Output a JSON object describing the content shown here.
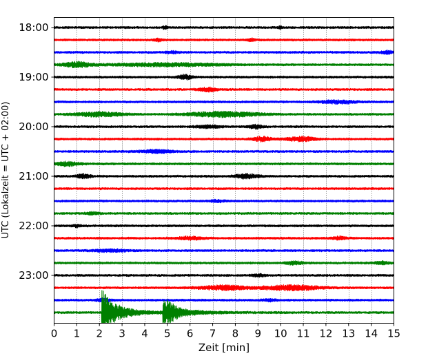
{
  "chart_data": {
    "type": "line",
    "title": "",
    "xlabel": "Zeit  [min]",
    "ylabel": "UTC (Lokalzeit = UTC + 02:00)",
    "xlim": [
      0,
      15
    ],
    "xticks": [
      0,
      1,
      2,
      3,
      4,
      5,
      6,
      7,
      8,
      9,
      10,
      11,
      12,
      13,
      14,
      15
    ],
    "grid": "vertical dotted",
    "legend": "none",
    "row_colors": [
      "#000000",
      "#ff0000",
      "#0000ff",
      "#008000"
    ],
    "ytick_labels": [
      {
        "row": 0,
        "label": "18:00"
      },
      {
        "row": 4,
        "label": "19:00"
      },
      {
        "row": 8,
        "label": "20:00"
      },
      {
        "row": 12,
        "label": "21:00"
      },
      {
        "row": 16,
        "label": "22:00"
      },
      {
        "row": 20,
        "label": "23:00"
      }
    ],
    "rows": [
      {
        "start": "18:00",
        "color": "#000000",
        "events": [
          {
            "t": 4.9,
            "amp": 0.2,
            "w": 0.1
          },
          {
            "t": 10.0,
            "amp": 0.15,
            "w": 0.1
          }
        ]
      },
      {
        "start": "18:15",
        "color": "#ff0000",
        "events": [
          {
            "t": 4.6,
            "amp": 0.15,
            "w": 0.2
          },
          {
            "t": 8.7,
            "amp": 0.15,
            "w": 0.2
          }
        ]
      },
      {
        "start": "18:30",
        "color": "#0000ff",
        "events": [
          {
            "t": 5.2,
            "amp": 0.15,
            "w": 0.3
          },
          {
            "t": 14.7,
            "amp": 0.2,
            "w": 0.3
          }
        ]
      },
      {
        "start": "18:45",
        "color": "#008000",
        "events": [
          {
            "t": 1.0,
            "amp": 0.35,
            "w": 0.6
          },
          {
            "t": 5.0,
            "amp": 0.2,
            "w": 2.5
          }
        ]
      },
      {
        "start": "19:00",
        "color": "#000000",
        "events": [
          {
            "t": 5.8,
            "amp": 0.3,
            "w": 0.3
          }
        ]
      },
      {
        "start": "19:15",
        "color": "#ff0000",
        "events": [
          {
            "t": 6.8,
            "amp": 0.25,
            "w": 0.4
          }
        ]
      },
      {
        "start": "19:30",
        "color": "#0000ff",
        "events": [
          {
            "t": 12.5,
            "amp": 0.2,
            "w": 0.8
          }
        ]
      },
      {
        "start": "19:45",
        "color": "#008000",
        "events": [
          {
            "t": 2.0,
            "amp": 0.3,
            "w": 1.0
          },
          {
            "t": 7.5,
            "amp": 0.35,
            "w": 1.5
          }
        ]
      },
      {
        "start": "20:00",
        "color": "#000000",
        "events": [
          {
            "t": 6.8,
            "amp": 0.2,
            "w": 0.5
          },
          {
            "t": 8.9,
            "amp": 0.25,
            "w": 0.3
          }
        ]
      },
      {
        "start": "20:15",
        "color": "#ff0000",
        "events": [
          {
            "t": 9.2,
            "amp": 0.3,
            "w": 0.4
          },
          {
            "t": 10.9,
            "amp": 0.3,
            "w": 0.6
          }
        ]
      },
      {
        "start": "20:30",
        "color": "#0000ff",
        "events": [
          {
            "t": 4.5,
            "amp": 0.2,
            "w": 0.7
          }
        ]
      },
      {
        "start": "20:45",
        "color": "#008000",
        "events": [
          {
            "t": 0.6,
            "amp": 0.3,
            "w": 0.5
          }
        ]
      },
      {
        "start": "21:00",
        "color": "#000000",
        "events": [
          {
            "t": 1.3,
            "amp": 0.3,
            "w": 0.3
          },
          {
            "t": 8.5,
            "amp": 0.3,
            "w": 0.5
          }
        ]
      },
      {
        "start": "21:15",
        "color": "#ff0000",
        "events": []
      },
      {
        "start": "21:30",
        "color": "#0000ff",
        "events": [
          {
            "t": 7.2,
            "amp": 0.15,
            "w": 0.3
          }
        ]
      },
      {
        "start": "21:45",
        "color": "#008000",
        "events": [
          {
            "t": 1.7,
            "amp": 0.15,
            "w": 0.3
          }
        ]
      },
      {
        "start": "22:00",
        "color": "#000000",
        "events": [
          {
            "t": 1.0,
            "amp": 0.15,
            "w": 0.2
          }
        ]
      },
      {
        "start": "22:15",
        "color": "#ff0000",
        "events": [
          {
            "t": 6.0,
            "amp": 0.2,
            "w": 0.6
          },
          {
            "t": 12.6,
            "amp": 0.2,
            "w": 0.3
          }
        ]
      },
      {
        "start": "22:30",
        "color": "#0000ff",
        "events": [
          {
            "t": 2.5,
            "amp": 0.15,
            "w": 0.8
          }
        ]
      },
      {
        "start": "22:45",
        "color": "#008000",
        "events": [
          {
            "t": 10.6,
            "amp": 0.2,
            "w": 0.4
          },
          {
            "t": 14.5,
            "amp": 0.2,
            "w": 0.3
          }
        ]
      },
      {
        "start": "23:00",
        "color": "#000000",
        "events": [
          {
            "t": 9.0,
            "amp": 0.15,
            "w": 0.3
          }
        ]
      },
      {
        "start": "23:15",
        "color": "#ff0000",
        "events": [
          {
            "t": 7.5,
            "amp": 0.3,
            "w": 1.0
          },
          {
            "t": 10.5,
            "amp": 0.35,
            "w": 1.2
          }
        ]
      },
      {
        "start": "23:30",
        "color": "#0000ff",
        "events": [
          {
            "t": 2.2,
            "amp": 0.2,
            "w": 0.3
          },
          {
            "t": 9.5,
            "amp": 0.15,
            "w": 0.3
          }
        ]
      },
      {
        "start": "23:45",
        "color": "#008000",
        "events": [
          {
            "t": 2.1,
            "amp": 2.6,
            "w": 1.6,
            "type": "quake"
          },
          {
            "t": 4.8,
            "amp": 1.8,
            "w": 1.4,
            "type": "quake"
          }
        ]
      }
    ]
  }
}
